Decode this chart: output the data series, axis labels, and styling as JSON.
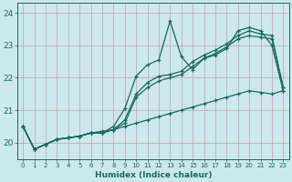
{
  "xlabel": "Humidex (Indice chaleur)",
  "background_color": "#cce8ec",
  "line_color": "#1a6b5a",
  "grid_color": "#b8d8dc",
  "xlim": [
    -0.5,
    23.5
  ],
  "ylim": [
    19.5,
    24.3
  ],
  "yticks": [
    20,
    21,
    22,
    23,
    24
  ],
  "xticks": [
    0,
    1,
    2,
    3,
    4,
    5,
    6,
    7,
    8,
    9,
    10,
    11,
    12,
    13,
    14,
    15,
    16,
    17,
    18,
    19,
    20,
    21,
    22,
    23
  ],
  "series": [
    [
      20.5,
      19.8,
      19.95,
      20.1,
      20.15,
      20.2,
      20.3,
      20.3,
      20.5,
      21.05,
      22.05,
      22.4,
      22.55,
      23.75,
      22.65,
      22.25,
      22.6,
      22.7,
      22.9,
      23.45,
      23.55,
      23.45,
      23.0,
      21.6
    ],
    [
      20.5,
      19.8,
      19.95,
      20.1,
      20.15,
      20.2,
      20.3,
      20.35,
      20.4,
      20.5,
      20.6,
      20.7,
      20.8,
      20.9,
      21.0,
      21.1,
      21.2,
      21.3,
      21.4,
      21.5,
      21.6,
      21.55,
      21.5,
      21.6
    ],
    [
      20.5,
      19.8,
      19.95,
      20.1,
      20.15,
      20.2,
      20.3,
      20.3,
      20.4,
      20.7,
      21.5,
      21.85,
      22.05,
      22.1,
      22.2,
      22.5,
      22.7,
      22.85,
      23.05,
      23.3,
      23.45,
      23.35,
      23.3,
      21.7
    ],
    [
      20.5,
      19.8,
      19.95,
      20.1,
      20.15,
      20.2,
      20.3,
      20.3,
      20.4,
      20.6,
      21.4,
      21.7,
      21.9,
      22.0,
      22.1,
      22.35,
      22.6,
      22.75,
      22.95,
      23.2,
      23.3,
      23.25,
      23.2,
      21.7
    ]
  ]
}
